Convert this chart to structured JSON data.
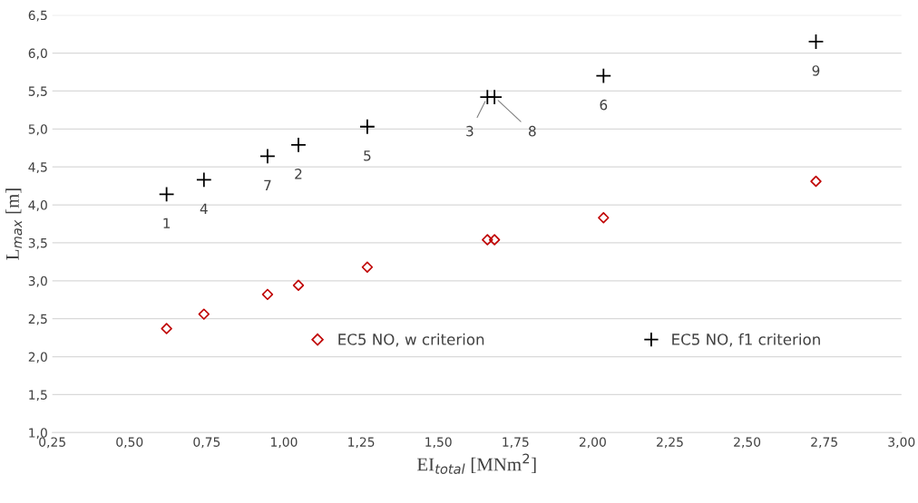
{
  "chart_data": {
    "type": "scatter",
    "xlabel": "EI$_{total}$ [MNm$^{2}$]",
    "ylabel": "L$_{max}$ [m]",
    "x": [
      0.62,
      0.741,
      0.947,
      1.047,
      1.27,
      1.659,
      1.682,
      2.035,
      2.723
    ],
    "series": [
      {
        "name": "EC5 NO, w criterion",
        "color": "#c00000",
        "marker": "diamond",
        "values": [
          2.37,
          2.56,
          2.82,
          2.94,
          3.18,
          3.54,
          3.54,
          3.83,
          4.31
        ]
      },
      {
        "name": "EC5 NO, f1 criterion",
        "color": "#000000",
        "marker": "cross",
        "values": [
          4.14,
          4.33,
          4.64,
          4.79,
          5.03,
          5.42,
          5.42,
          5.7,
          6.15
        ]
      }
    ],
    "annotations": [
      {
        "text": "1",
        "x": 0.62,
        "y": 4.14
      },
      {
        "text": "4",
        "x": 0.741,
        "y": 4.33
      },
      {
        "text": "7",
        "x": 0.947,
        "y": 4.64
      },
      {
        "text": "2",
        "x": 1.047,
        "y": 4.79
      },
      {
        "text": "5",
        "x": 1.27,
        "y": 5.03
      },
      {
        "text": "3",
        "x": 1.659,
        "y": 5.42
      },
      {
        "text": "8",
        "x": 1.682,
        "y": 5.42
      },
      {
        "text": "6",
        "x": 2.035,
        "y": 5.7
      },
      {
        "text": "9",
        "x": 2.723,
        "y": 6.15
      }
    ],
    "xlim": [
      0.25,
      3.0
    ],
    "xticks": [
      {
        "value": 0.25,
        "label": "0,25"
      },
      {
        "value": 0.5,
        "label": "0,50"
      },
      {
        "value": 0.75,
        "label": "0,75"
      },
      {
        "value": 1.0,
        "label": "1,00"
      },
      {
        "value": 1.25,
        "label": "1,25"
      },
      {
        "value": 1.5,
        "label": "1,50"
      },
      {
        "value": 1.75,
        "label": "1,75"
      },
      {
        "value": 2.0,
        "label": "2,00"
      },
      {
        "value": 2.25,
        "label": "2,25"
      },
      {
        "value": 2.5,
        "label": "2,50"
      },
      {
        "value": 2.75,
        "label": "2,75"
      },
      {
        "value": 3.0,
        "label": "3,00"
      }
    ],
    "ylim": [
      1.0,
      6.5
    ],
    "yticks": [
      {
        "value": 1.0,
        "label": "1,0"
      },
      {
        "value": 1.5,
        "label": "1,5"
      },
      {
        "value": 2.0,
        "label": "2,0"
      },
      {
        "value": 2.5,
        "label": "2,5"
      },
      {
        "value": 3.0,
        "label": "3,0"
      },
      {
        "value": 3.5,
        "label": "3,5"
      },
      {
        "value": 4.0,
        "label": "4,0"
      },
      {
        "value": 4.5,
        "label": "4,5"
      },
      {
        "value": 5.0,
        "label": "5,0"
      },
      {
        "value": 5.5,
        "label": "5,5"
      },
      {
        "value": 6.0,
        "label": "6,0"
      },
      {
        "value": 6.5,
        "label": "6,5"
      }
    ],
    "grid": "y",
    "legend": "bottom"
  }
}
